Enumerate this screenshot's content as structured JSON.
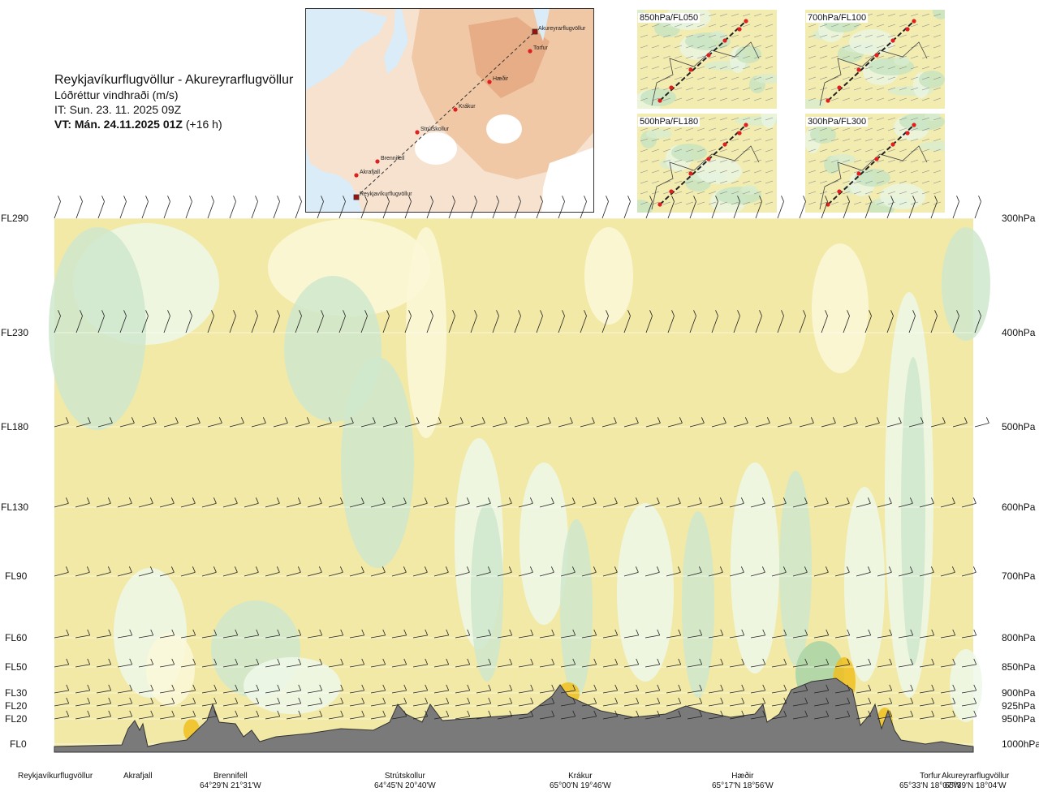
{
  "header": {
    "route": "Reykjavíkurflugvöllur - Akureyrarflugvöllur",
    "parameter": "Lóðréttur vindhraði (m/s)",
    "issue_time": "IT: Sun. 23. 11. 2025 09Z",
    "valid_time": "VT: Mán. 24.11.2025 01Z",
    "lead_time": "(+16 h)"
  },
  "route_map": {
    "waypoints": [
      "Akureyrarflugvöllur",
      "Torfur",
      "Hæðir",
      "Krákur",
      "Strútskollur",
      "Brennifell",
      "Akrafjall",
      "Reykjavíkurflugvöllur"
    ]
  },
  "minimaps": [
    {
      "label": "850hPa/FL050"
    },
    {
      "label": "700hPa/FL100"
    },
    {
      "label": "500hPa/FL180"
    },
    {
      "label": "300hPa/FL300"
    }
  ],
  "levels": [
    {
      "fl": "FL290",
      "hpa": "300hPa"
    },
    {
      "fl": "FL230",
      "hpa": "400hPa"
    },
    {
      "fl": "FL180",
      "hpa": "500hPa"
    },
    {
      "fl": "FL130",
      "hpa": "600hPa"
    },
    {
      "fl": "FL90",
      "hpa": "700hPa"
    },
    {
      "fl": "FL60",
      "hpa": "800hPa"
    },
    {
      "fl": "FL50",
      "hpa": "850hPa"
    },
    {
      "fl": "FL30",
      "hpa": "900hPa"
    },
    {
      "fl": "FL20",
      "hpa": "925hPa"
    },
    {
      "fl": "FL20",
      "hpa": "950hPa"
    },
    {
      "fl": "FL0",
      "hpa": "1000hPa"
    }
  ],
  "stations": [
    {
      "name": "Reykjavíkurflugvöllur",
      "coord": ""
    },
    {
      "name": "Akrafjall",
      "coord": ""
    },
    {
      "name": "Brennifell",
      "coord": "64°29'N 21°31'W"
    },
    {
      "name": "Strútskollur",
      "coord": "64°45'N 20°40'W"
    },
    {
      "name": "Krákur",
      "coord": "65°00'N 19°46'W"
    },
    {
      "name": "Hæðir",
      "coord": "65°17'N 18°56'W"
    },
    {
      "name": "Torfur",
      "coord": "65°33'N 18°07'W"
    },
    {
      "name": "Akureyrarflugvöllur",
      "coord": "65°39'N 18°04'W"
    }
  ],
  "colors": {
    "strong_up": "#f2e9a6",
    "weak_up": "#fcf8d8",
    "neutral": "#eef8ea",
    "weak_down": "#cfe8cd",
    "strong_down": "#a9d3a8",
    "terrain": "#7a7a7a",
    "hotspot": "#f0c020",
    "waypoint": "#e02020"
  },
  "chart_data": {
    "type": "heatmap",
    "title": "Reykjavíkurflugvöllur - Akureyrarflugvöllur",
    "subtitle": "Lóðréttur vindhraði (m/s)",
    "y_left_ticks": [
      "FL290",
      "FL230",
      "FL180",
      "FL130",
      "FL90",
      "FL60",
      "FL50",
      "FL30",
      "FL20",
      "FL20",
      "FL0"
    ],
    "y_right_ticks": [
      "300hPa",
      "400hPa",
      "500hPa",
      "600hPa",
      "700hPa",
      "800hPa",
      "850hPa",
      "900hPa",
      "925hPa",
      "950hPa",
      "1000hPa"
    ],
    "pressure_levels_hpa": [
      300,
      400,
      500,
      600,
      700,
      800,
      850,
      900,
      925,
      950,
      1000
    ],
    "x_stations": [
      "Reykjavíkurflugvöllur",
      "Akrafjall",
      "Brennifell",
      "Strútskollur",
      "Krákur",
      "Hæðir",
      "Torfur",
      "Akureyrarflugvöllur"
    ],
    "wind_barb_levels_hpa": [
      300,
      400,
      500,
      600,
      700,
      800,
      850,
      900,
      925,
      950
    ],
    "grid": true
  }
}
